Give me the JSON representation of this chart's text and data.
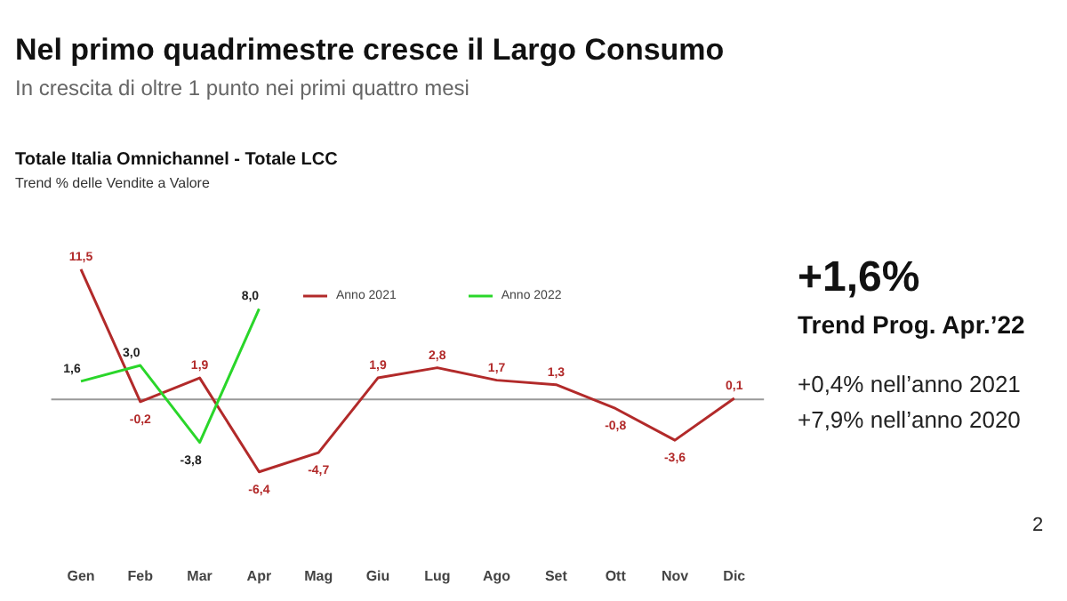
{
  "chart_data": {
    "type": "line",
    "title": "Nel primo quadrimestre cresce il Largo Consumo",
    "subtitle": "In crescita di oltre 1 punto nei primi quattro mesi",
    "categories": [
      "Gen",
      "Feb",
      "Mar",
      "Apr",
      "Mag",
      "Giu",
      "Lug",
      "Ago",
      "Set",
      "Ott",
      "Nov",
      "Dic"
    ],
    "series": [
      {
        "name": "Anno 2021",
        "color": "#b22a2a",
        "values": [
          11.5,
          -0.2,
          1.9,
          -6.4,
          -4.7,
          1.9,
          2.8,
          1.7,
          1.3,
          -0.8,
          -3.6,
          0.1
        ],
        "value_labels": [
          "11,5",
          "-0,2",
          "1,9",
          "-6,4",
          "-4,7",
          "1,9",
          "2,8",
          "1,7",
          "1,3",
          "-0,8",
          "-3,6",
          "0,1"
        ]
      },
      {
        "name": "Anno 2022",
        "color": "#2ad62a",
        "values": [
          1.6,
          3.0,
          -3.8,
          8.0,
          null,
          null,
          null,
          null,
          null,
          null,
          null,
          null
        ],
        "value_labels": [
          "1,6",
          "3,0",
          "-3,8",
          "8,0",
          null,
          null,
          null,
          null,
          null,
          null,
          null,
          null
        ]
      }
    ],
    "legend": "top",
    "grid": false,
    "marker": "none",
    "line_style": "solid",
    "ref_lines": [
      {
        "axis": "y",
        "value": 0,
        "color": "#999999"
      }
    ],
    "annotations": [
      "Totale Italia  Omnichannel - Totale LCC",
      "Trend % delle Vendite a Valore",
      "+1,6%",
      "Trend Prog. Apr.’22",
      "+0,4% nell’anno 2021",
      "+7,9% nell’anno 2020",
      "2"
    ]
  }
}
